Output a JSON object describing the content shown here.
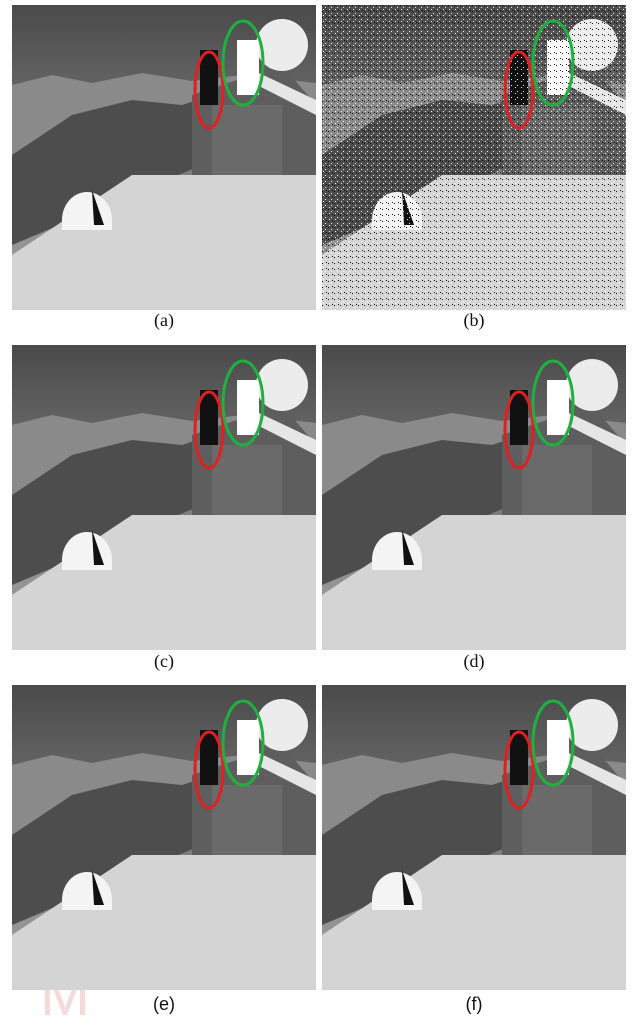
{
  "figure": {
    "panels": [
      {
        "label": "(a)"
      },
      {
        "label": "(b)"
      },
      {
        "label": "(c)"
      },
      {
        "label": "(d)"
      },
      {
        "label": "(e)"
      },
      {
        "label": "(f)"
      }
    ],
    "watermark": "M"
  }
}
